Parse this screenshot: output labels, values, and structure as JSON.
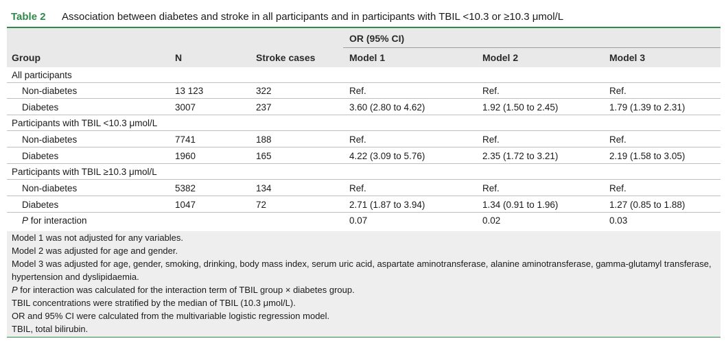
{
  "table": {
    "label": "Table 2",
    "title": "Association between diabetes and stroke in all participants and in participants with TBIL <10.3 or ≥10.3 μmol/L"
  },
  "header": {
    "or_group": "OR (95% CI)",
    "group": "Group",
    "n": "N",
    "stroke_cases": "Stroke cases",
    "model1": "Model 1",
    "model2": "Model 2",
    "model3": "Model 3"
  },
  "rows": [
    {
      "group": "All participants"
    },
    {
      "label": "Non-diabetes",
      "n": "13 123",
      "cases": "322",
      "m1": "Ref.",
      "m2": "Ref.",
      "m3": "Ref."
    },
    {
      "label": "Diabetes",
      "n": "3007",
      "cases": "237",
      "m1": "3.60 (2.80 to 4.62)",
      "m2": "1.92 (1.50 to 2.45)",
      "m3": "1.79 (1.39 to 2.31)"
    },
    {
      "group": "Participants with TBIL <10.3 μmol/L"
    },
    {
      "label": "Non-diabetes",
      "n": "7741",
      "cases": "188",
      "m1": "Ref.",
      "m2": "Ref.",
      "m3": "Ref."
    },
    {
      "label": "Diabetes",
      "n": "1960",
      "cases": "165",
      "m1": "4.22 (3.09 to 5.76)",
      "m2": "2.35 (1.72 to 3.21)",
      "m3": "2.19 (1.58 to 3.05)"
    },
    {
      "group": "Participants with TBIL ≥10.3 μmol/L"
    },
    {
      "label": "Non-diabetes",
      "n": "5382",
      "cases": "134",
      "m1": "Ref.",
      "m2": "Ref.",
      "m3": "Ref."
    },
    {
      "label": "Diabetes",
      "n": "1047",
      "cases": "72",
      "m1": "2.71 (1.87 to 3.94)",
      "m2": "1.34 (0.91 to 1.96)",
      "m3": "1.27 (0.85 to 1.88)"
    },
    {
      "label_italic": "P",
      "label_rest": " for interaction",
      "m1": "0.07",
      "m2": "0.02",
      "m3": "0.03"
    }
  ],
  "footnotes": {
    "model1": "Model 1 was not adjusted for any variables.",
    "model2": "Model 2 was adjusted for age and gender.",
    "model3": "Model 3 was adjusted for age, gender, smoking, drinking, body mass index, serum uric acid, aspartate aminotransferase, alanine aminotransferase, gamma-glutamyl transferase, hypertension and dyslipidaemia.",
    "p_italic": "P",
    "p_rest": " for interaction was calculated for the interaction term of TBIL group × diabetes group.",
    "tbil_strat": "TBIL concentrations were stratified by the median of TBIL (10.3 μmol/L).",
    "or_ci": "OR and 95% CI were calculated from the multivariable logistic regression model.",
    "abbrev": "TBIL, total bilirubin."
  },
  "colors": {
    "accent_green": "#2f8a4a",
    "header_bg": "#e9e9e9",
    "footnote_bg": "#eeeeee"
  }
}
